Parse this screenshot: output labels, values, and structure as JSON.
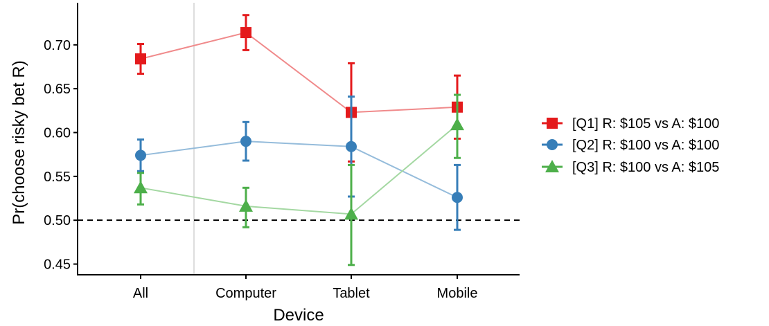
{
  "chart_data": {
    "type": "line",
    "title": "",
    "xlabel": "Device",
    "ylabel": "Pr(choose risky bet R)",
    "categories": [
      "All",
      "Computer",
      "Tablet",
      "Mobile"
    ],
    "ylim": [
      0.437,
      0.748
    ],
    "yticks": [
      0.45,
      0.5,
      0.55,
      0.6,
      0.65,
      0.7
    ],
    "ytick_labels": [
      "0.45",
      "0.50",
      "0.55",
      "0.60",
      "0.65",
      "0.70"
    ],
    "reference_line": 0.5,
    "separator_after_category": "All",
    "grid": false,
    "legend_position": "right",
    "series": [
      {
        "name": "[Q1] R: $105 vs A: $100",
        "color": "#e41a1c",
        "line_color": "#f08a8b",
        "marker": "square",
        "values": [
          0.684,
          0.714,
          0.623,
          0.629
        ],
        "ci_low": [
          0.667,
          0.694,
          0.567,
          0.593
        ],
        "ci_high": [
          0.701,
          0.734,
          0.679,
          0.665
        ]
      },
      {
        "name": "[Q2] R: $100 vs A: $100",
        "color": "#377eb8",
        "line_color": "#95bcdb",
        "marker": "circle",
        "values": [
          0.574,
          0.59,
          0.584,
          0.526
        ],
        "ci_low": [
          0.556,
          0.568,
          0.527,
          0.489
        ],
        "ci_high": [
          0.592,
          0.612,
          0.641,
          0.563
        ]
      },
      {
        "name": "[Q3] R: $100 vs A: $105",
        "color": "#4daf4a",
        "line_color": "#a4d8a2",
        "marker": "triangle",
        "values": [
          0.537,
          0.516,
          0.507,
          0.609
        ],
        "ci_low": [
          0.518,
          0.492,
          0.449,
          0.571
        ],
        "ci_high": [
          0.554,
          0.537,
          0.563,
          0.643
        ]
      }
    ]
  }
}
